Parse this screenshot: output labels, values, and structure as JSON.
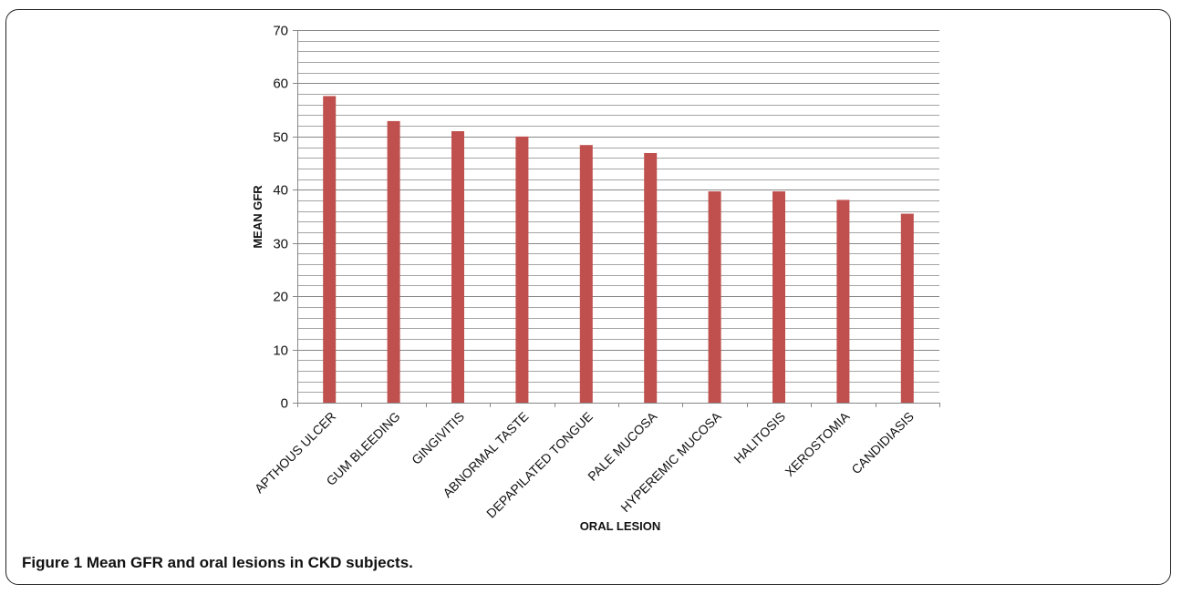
{
  "chart_data": {
    "type": "bar",
    "categories": [
      "APTHOUS ULCER",
      "GUM BLEEDING",
      "GINGIVITIS",
      "ABNORMAL TASTE",
      "DEPAPILATED TONGUE",
      "PALE MUCOSA",
      "HYPEREMIC MUCOSA",
      "HALITOSIS",
      "XEROSTOMIA",
      "CANDIDIASIS"
    ],
    "values": [
      57.6,
      52.9,
      51.0,
      50.0,
      48.4,
      46.9,
      39.7,
      39.7,
      38.1,
      35.5
    ],
    "title": "",
    "xlabel": "ORAL LESION",
    "ylabel": "MEAN GFR",
    "ylim": [
      0,
      70
    ],
    "yticks": [
      0,
      10,
      20,
      30,
      40,
      50,
      60,
      70
    ],
    "minor_grid_step": 2,
    "grid": true,
    "bar_color": "#c0504d",
    "grid_color": "#868686"
  },
  "caption": {
    "label": "Figure 1",
    "text": "Mean GFR and oral lesions in CKD subjects."
  }
}
